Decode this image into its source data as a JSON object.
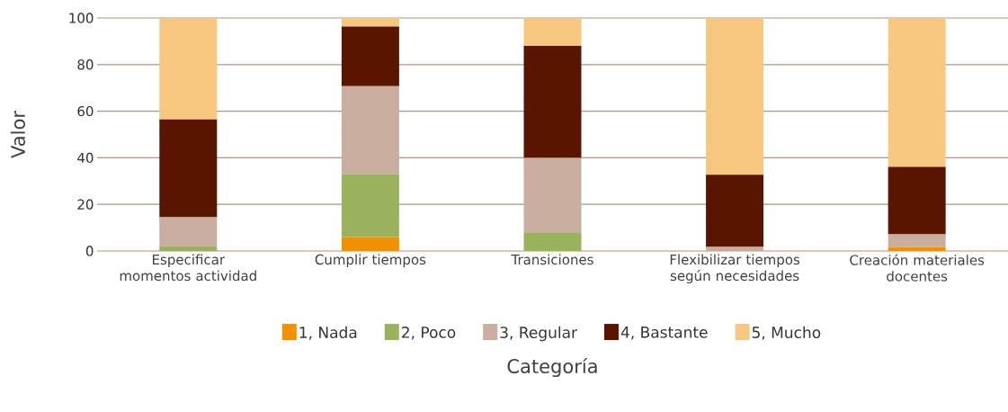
{
  "chart_data": {
    "type": "bar",
    "stacked": true,
    "xlabel": "Categoría",
    "ylabel": "Valor",
    "categories": [
      "Especificar momentos actividad",
      "Cumplir tiempos",
      "Transiciones",
      "Flexibilizar tiempos según necesidades",
      "Creación materiales docentes"
    ],
    "series": [
      {
        "name": "1, Nada",
        "color": "#f29100",
        "values": [
          0,
          6,
          0,
          0,
          1.7
        ]
      },
      {
        "name": "2, Poco",
        "color": "#98b35b",
        "values": [
          2,
          27,
          8,
          0,
          0
        ]
      },
      {
        "name": "3, Regular",
        "color": "#c9ad9f",
        "values": [
          12.5,
          37.8,
          32,
          1.7,
          5.4
        ]
      },
      {
        "name": "4, Bastante",
        "color": "#5a1500",
        "values": [
          42,
          25.5,
          48,
          31,
          29
        ]
      },
      {
        "name": "5, Mucho",
        "color": "#f7c780",
        "values": [
          43.5,
          3.7,
          12,
          67.3,
          63.9
        ]
      }
    ],
    "ylim": [
      0,
      100
    ],
    "yticks": [
      0,
      20,
      40,
      60,
      80,
      100
    ],
    "grid": "y",
    "legend": "bottom"
  }
}
